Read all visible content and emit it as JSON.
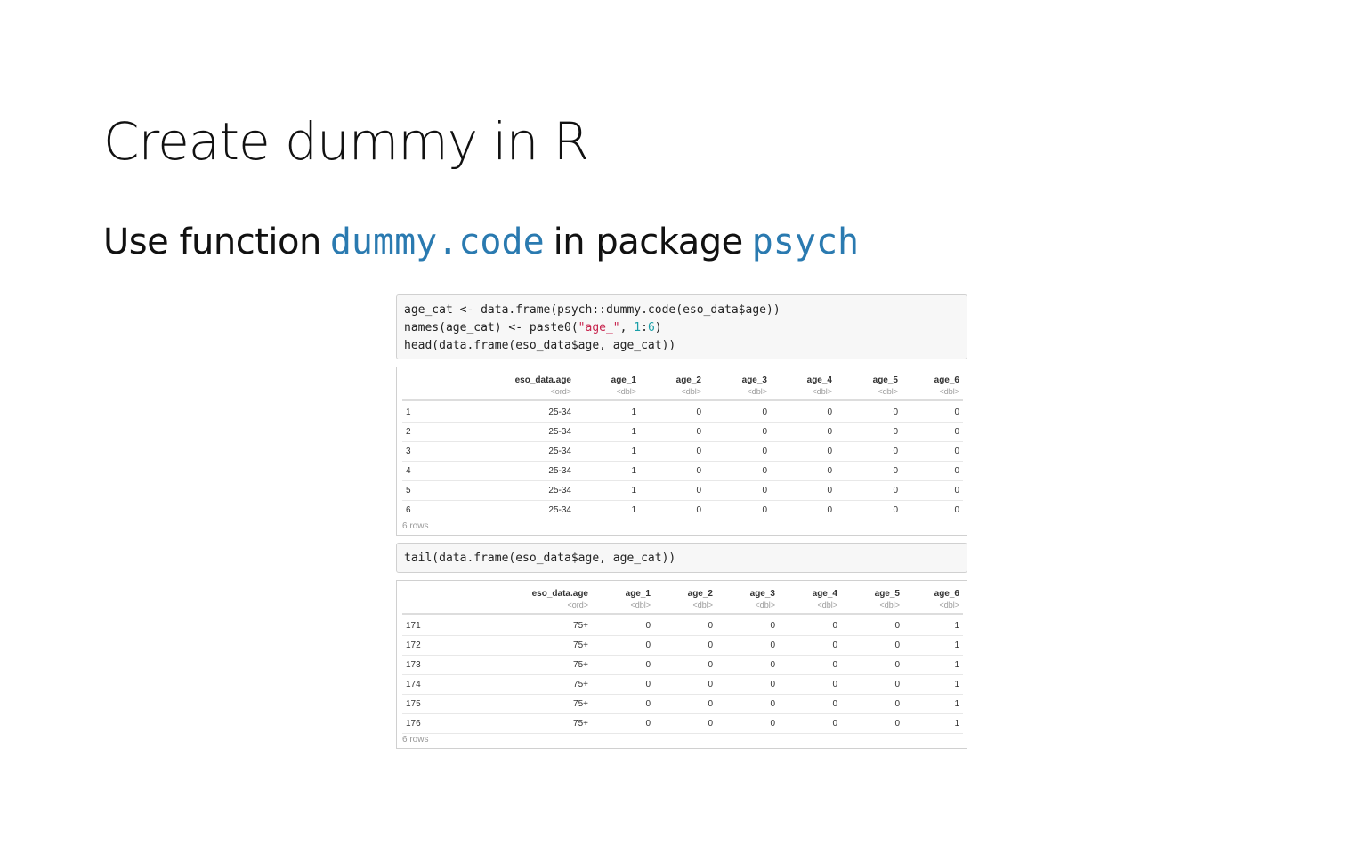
{
  "slide": {
    "title": "Create dummy in R",
    "subtitle_prefix": "Use function",
    "subtitle_func": "dummy.code",
    "subtitle_middle": "in package",
    "subtitle_pkg": "psych"
  },
  "code1": {
    "line1": "age_cat <- data.frame(psych::dummy.code(eso_data$age))",
    "line2_a": "names(age_cat) <- paste0(",
    "line2_str": "\"age_\"",
    "line2_b": ", ",
    "line2_num1": "1",
    "line2_c": ":",
    "line2_num2": "6",
    "line2_d": ")",
    "line3": "head(data.frame(eso_data$age, age_cat))"
  },
  "code2": {
    "line1": "tail(data.frame(eso_data$age, age_cat))"
  },
  "table_head": {
    "columns": [
      "",
      "eso_data.age",
      "age_1",
      "age_2",
      "age_3",
      "age_4",
      "age_5",
      "age_6"
    ],
    "types": [
      "",
      "<ord>",
      "<dbl>",
      "<dbl>",
      "<dbl>",
      "<dbl>",
      "<dbl>",
      "<dbl>"
    ],
    "rows": [
      [
        "1",
        "25-34",
        "1",
        "0",
        "0",
        "0",
        "0",
        "0"
      ],
      [
        "2",
        "25-34",
        "1",
        "0",
        "0",
        "0",
        "0",
        "0"
      ],
      [
        "3",
        "25-34",
        "1",
        "0",
        "0",
        "0",
        "0",
        "0"
      ],
      [
        "4",
        "25-34",
        "1",
        "0",
        "0",
        "0",
        "0",
        "0"
      ],
      [
        "5",
        "25-34",
        "1",
        "0",
        "0",
        "0",
        "0",
        "0"
      ],
      [
        "6",
        "25-34",
        "1",
        "0",
        "0",
        "0",
        "0",
        "0"
      ]
    ],
    "footer": "6 rows"
  },
  "table_tail": {
    "columns": [
      "",
      "eso_data.age",
      "age_1",
      "age_2",
      "age_3",
      "age_4",
      "age_5",
      "age_6"
    ],
    "types": [
      "",
      "<ord>",
      "<dbl>",
      "<dbl>",
      "<dbl>",
      "<dbl>",
      "<dbl>",
      "<dbl>"
    ],
    "rows": [
      [
        "171",
        "75+",
        "0",
        "0",
        "0",
        "0",
        "0",
        "1"
      ],
      [
        "172",
        "75+",
        "0",
        "0",
        "0",
        "0",
        "0",
        "1"
      ],
      [
        "173",
        "75+",
        "0",
        "0",
        "0",
        "0",
        "0",
        "1"
      ],
      [
        "174",
        "75+",
        "0",
        "0",
        "0",
        "0",
        "0",
        "1"
      ],
      [
        "175",
        "75+",
        "0",
        "0",
        "0",
        "0",
        "0",
        "1"
      ],
      [
        "176",
        "75+",
        "0",
        "0",
        "0",
        "0",
        "0",
        "1"
      ]
    ],
    "footer": "6 rows"
  }
}
